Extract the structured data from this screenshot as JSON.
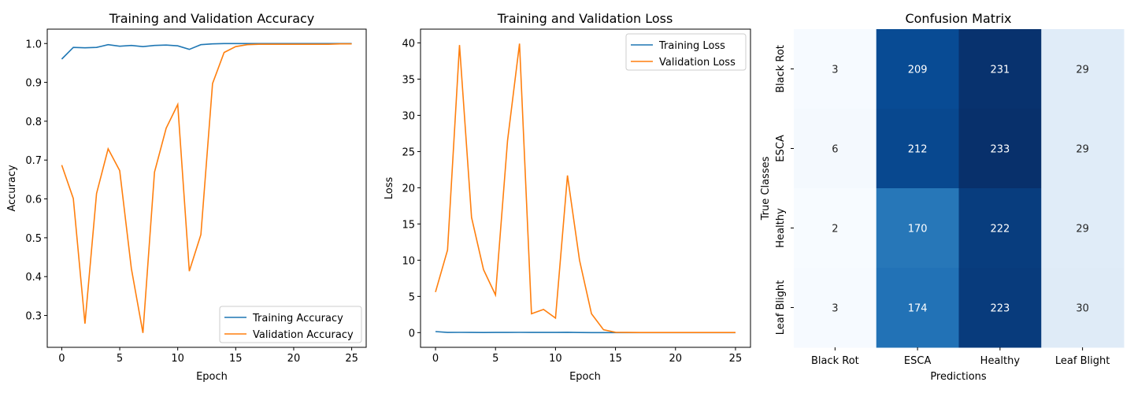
{
  "chart_data": [
    {
      "type": "line",
      "title": "Training and Validation Accuracy",
      "xlabel": "Epoch",
      "ylabel": "Accuracy",
      "xlim": [
        -1.25,
        26.25
      ],
      "ylim": [
        0.218,
        1.037
      ],
      "xticks": [
        0,
        5,
        10,
        15,
        20,
        25
      ],
      "yticks": [
        0.3,
        0.4,
        0.5,
        0.6,
        0.7,
        0.8,
        0.9,
        1.0
      ],
      "ytick_labels": [
        "0.3",
        "0.4",
        "0.5",
        "0.6",
        "0.7",
        "0.8",
        "0.9",
        "1.0"
      ],
      "grid": false,
      "legend": "lower right",
      "x": [
        0,
        1,
        2,
        3,
        4,
        5,
        6,
        7,
        8,
        9,
        10,
        11,
        12,
        13,
        14,
        15,
        16,
        17,
        18,
        19,
        20,
        21,
        22,
        23,
        24,
        25
      ],
      "series": [
        {
          "name": "Training Accuracy",
          "color": "#1f77b4",
          "values": [
            0.96,
            0.99,
            0.989,
            0.99,
            0.997,
            0.993,
            0.995,
            0.992,
            0.995,
            0.996,
            0.994,
            0.985,
            0.997,
            0.999,
            1.0,
            1.0,
            1.0,
            1.0,
            1.0,
            1.0,
            1.0,
            1.0,
            1.0,
            1.0,
            1.0,
            1.0
          ]
        },
        {
          "name": "Validation Accuracy",
          "color": "#ff7f0e",
          "values": [
            0.687,
            0.601,
            0.279,
            0.614,
            0.729,
            0.673,
            0.421,
            0.255,
            0.669,
            0.782,
            0.843,
            0.414,
            0.508,
            0.897,
            0.977,
            0.992,
            0.997,
            0.998,
            0.998,
            0.998,
            0.998,
            0.998,
            0.998,
            0.998,
            0.999,
            0.999
          ]
        }
      ]
    },
    {
      "type": "line",
      "title": "Training and Validation Loss",
      "xlabel": "Epoch",
      "ylabel": "Loss",
      "xlim": [
        -1.25,
        26.25
      ],
      "ylim": [
        -2.03,
        41.9
      ],
      "xticks": [
        0,
        5,
        10,
        15,
        20,
        25
      ],
      "yticks": [
        0,
        5,
        10,
        15,
        20,
        25,
        30,
        35,
        40
      ],
      "ytick_labels": [
        "0",
        "5",
        "10",
        "15",
        "20",
        "25",
        "30",
        "35",
        "40"
      ],
      "grid": false,
      "legend": "upper right",
      "x": [
        0,
        1,
        2,
        3,
        4,
        5,
        6,
        7,
        8,
        9,
        10,
        11,
        12,
        13,
        14,
        15,
        16,
        17,
        18,
        19,
        20,
        21,
        22,
        23,
        24,
        25
      ],
      "series": [
        {
          "name": "Training Loss",
          "color": "#1f77b4",
          "values": [
            0.15,
            0.03,
            0.04,
            0.03,
            0.01,
            0.03,
            0.02,
            0.04,
            0.03,
            0.02,
            0.02,
            0.05,
            0.01,
            0.005,
            0.001,
            0.001,
            0.001,
            0.001,
            0.001,
            0.001,
            0.001,
            0.001,
            0.001,
            0.001,
            0.001,
            0.001
          ]
        },
        {
          "name": "Validation Loss",
          "color": "#ff7f0e",
          "values": [
            5.6,
            11.4,
            39.7,
            15.9,
            8.7,
            5.2,
            26.5,
            39.9,
            2.6,
            3.2,
            2.0,
            21.7,
            10.0,
            2.6,
            0.4,
            0.05,
            0.02,
            0.01,
            0.01,
            0.01,
            0.01,
            0.01,
            0.01,
            0.01,
            0.01,
            0.01
          ]
        }
      ]
    },
    {
      "type": "heatmap",
      "title": "Confusion Matrix",
      "xlabel": "Predictions",
      "ylabel": "True Classes",
      "colormap": "Blues",
      "x_categories": [
        "Black Rot",
        "ESCA",
        "Healthy",
        "Leaf Blight"
      ],
      "y_categories": [
        "Black Rot",
        "ESCA",
        "Healthy",
        "Leaf Blight"
      ],
      "values": [
        [
          3,
          209,
          231,
          29
        ],
        [
          6,
          212,
          233,
          29
        ],
        [
          2,
          170,
          222,
          29
        ],
        [
          3,
          174,
          223,
          30
        ]
      ]
    }
  ]
}
